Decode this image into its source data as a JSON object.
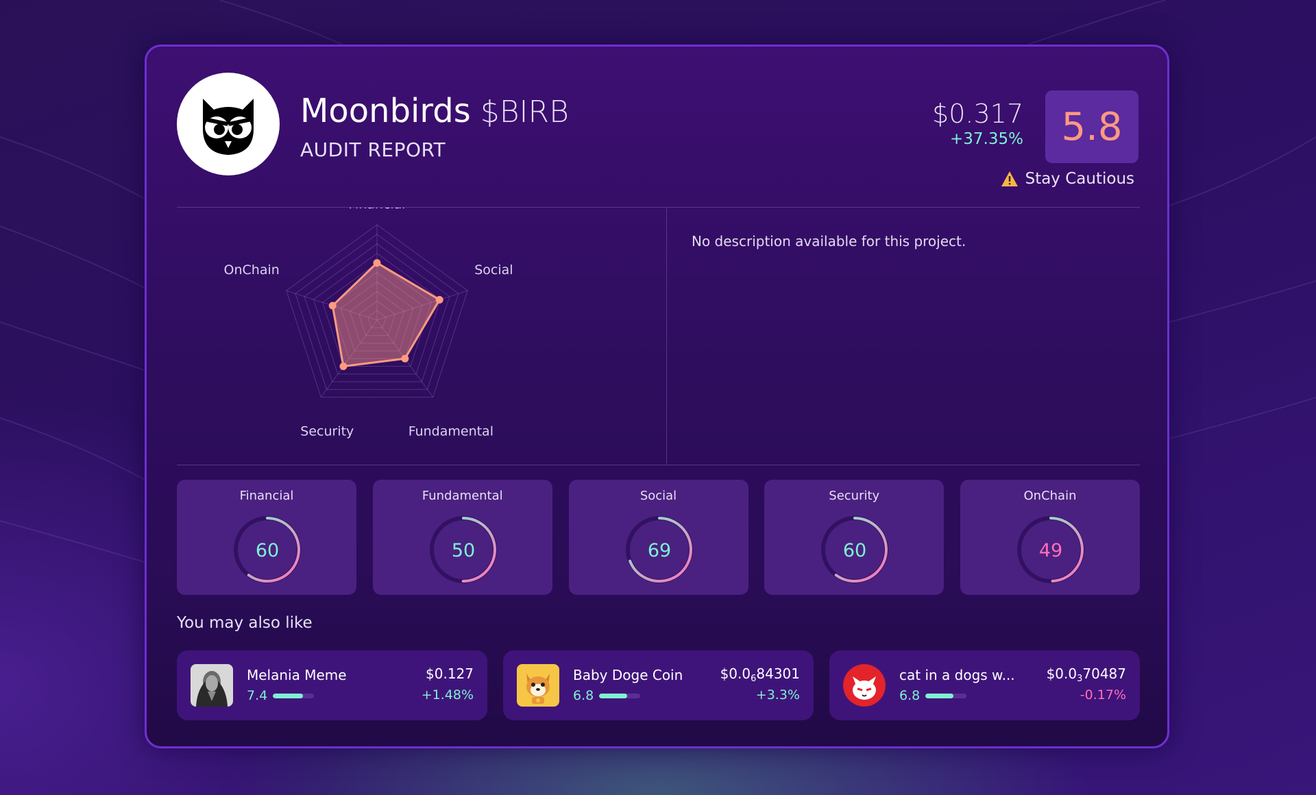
{
  "project": {
    "name": "Moonbirds",
    "ticker": "$BIRB",
    "subtitle": "AUDIT REPORT",
    "logo_icon": "owl-logo-icon",
    "price": "$0.317",
    "price_change": "+37.35%",
    "score": "5.8",
    "verdict": "Stay Cautious",
    "verdict_icon": "warning-triangle-icon",
    "description": "No description available for this project."
  },
  "chart_data": {
    "type": "radar",
    "axes": [
      "Financial",
      "Social",
      "Fundamental",
      "Security",
      "OnChain"
    ],
    "values": [
      60,
      69,
      50,
      60,
      49
    ],
    "range": [
      0,
      100
    ],
    "grid_levels": 10,
    "series_color": "#ff9a80"
  },
  "metrics": [
    {
      "label": "Financial",
      "value": 60,
      "color": "#7ff1d2"
    },
    {
      "label": "Fundamental",
      "value": 50,
      "color": "#7ff1d2"
    },
    {
      "label": "Social",
      "value": 69,
      "color": "#7ff1d2"
    },
    {
      "label": "Security",
      "value": 60,
      "color": "#7ff1d2"
    },
    {
      "label": "OnChain",
      "value": 49,
      "color": "#ff6fb8"
    }
  ],
  "similar_title": "You may also like",
  "similar": [
    {
      "name": "Melania Meme",
      "score": "7.4",
      "score_value": 7.4,
      "price_prefix": "$0.127",
      "price_sub": "",
      "price_suffix": "",
      "change": "+1.48%",
      "change_color": "#7ff1d2",
      "icon": "melania-avatar-icon"
    },
    {
      "name": "Baby Doge Coin",
      "score": "6.8",
      "score_value": 6.8,
      "price_prefix": "$0.0",
      "price_sub": "6",
      "price_suffix": "84301",
      "change": "+3.3%",
      "change_color": "#7ff1d2",
      "icon": "baby-doge-avatar-icon"
    },
    {
      "name": "cat in a dogs w...",
      "score": "6.8",
      "score_value": 6.8,
      "price_prefix": "$0.0",
      "price_sub": "3",
      "price_suffix": "70487",
      "change": "-0.17%",
      "change_color": "#ff6fb8",
      "icon": "cat-avatar-icon"
    }
  ]
}
